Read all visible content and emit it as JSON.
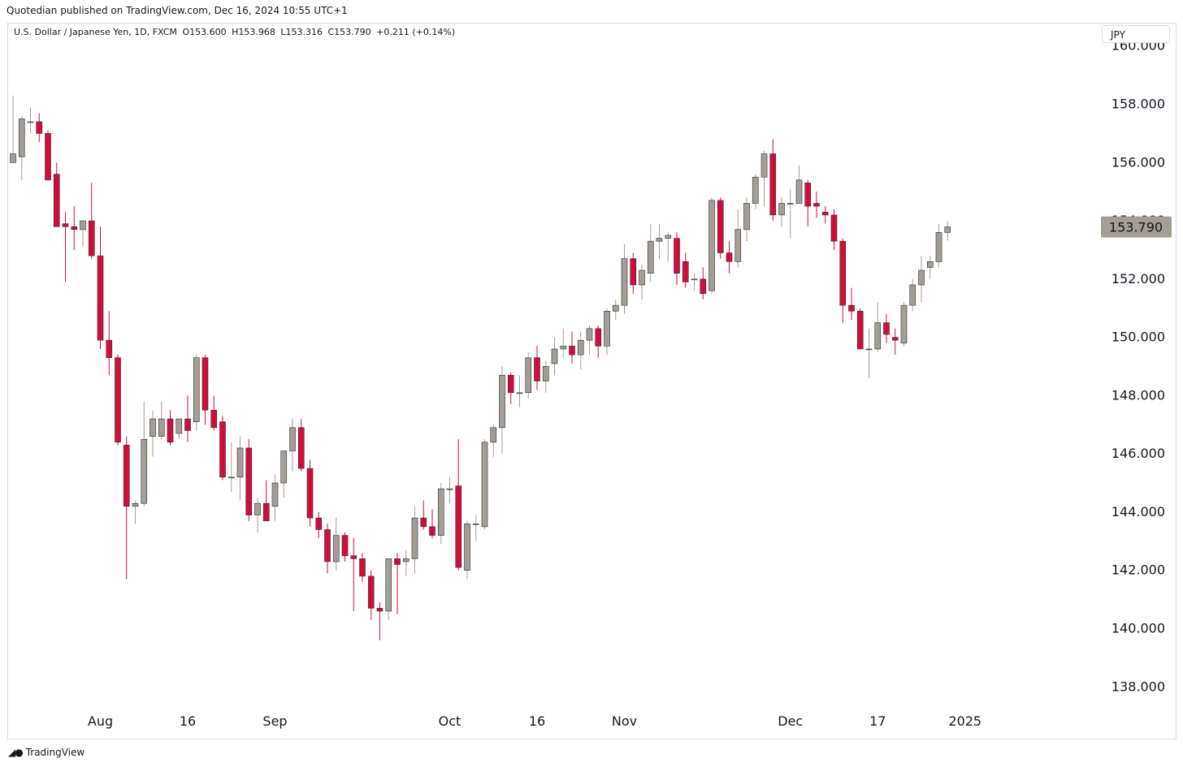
{
  "header": {
    "published": "Quotedian published on TradingView.com, Dec 16, 2024 10:55 UTC+1"
  },
  "legend": {
    "symbol": "U.S. Dollar / Japanese Yen, 1D, FXCM",
    "open": "O153.600",
    "high": "H153.968",
    "low": "L153.316",
    "close": "C153.790",
    "change": "+0.211 (+0.14%)"
  },
  "currency_button": "JPY",
  "last_price_label": "153.790",
  "footer": {
    "brand": "TradingView",
    "logo_icon": "tradingview-logo-icon"
  },
  "colors": {
    "up": "#a59e94",
    "down": "#d20d3b",
    "last_price_bg": "#a59e94",
    "grid": "#ffffff"
  },
  "chart_data": {
    "type": "candlestick",
    "symbol": "USDJPY",
    "interval": "1D",
    "ylim": [
      137.2,
      160.8
    ],
    "y_ticks": [
      "138.000",
      "140.000",
      "142.000",
      "144.000",
      "146.000",
      "148.000",
      "150.000",
      "152.000",
      "154.000",
      "156.000",
      "158.000",
      "160.000"
    ],
    "x_ticks": [
      {
        "label": "Aug",
        "index": 10
      },
      {
        "label": "16",
        "index": 20
      },
      {
        "label": "Sep",
        "index": 30
      },
      {
        "label": "Oct",
        "index": 50
      },
      {
        "label": "16",
        "index": 60
      },
      {
        "label": "Nov",
        "index": 70
      },
      {
        "label": "Dec",
        "index": 89
      },
      {
        "label": "17",
        "index": 99
      },
      {
        "label": "2025",
        "index": 109
      }
    ],
    "candles": [
      {
        "o": 156.0,
        "h": 158.3,
        "l": 156.0,
        "c": 156.3
      },
      {
        "o": 156.2,
        "h": 157.6,
        "l": 155.4,
        "c": 157.5
      },
      {
        "o": 157.4,
        "h": 157.9,
        "l": 157.0,
        "c": 157.4
      },
      {
        "o": 157.4,
        "h": 157.7,
        "l": 156.7,
        "c": 157.0
      },
      {
        "o": 157.0,
        "h": 157.1,
        "l": 155.5,
        "c": 155.4
      },
      {
        "o": 155.6,
        "h": 156.0,
        "l": 153.8,
        "c": 153.8
      },
      {
        "o": 153.9,
        "h": 154.3,
        "l": 151.9,
        "c": 153.8
      },
      {
        "o": 153.8,
        "h": 154.5,
        "l": 153.0,
        "c": 153.7
      },
      {
        "o": 153.7,
        "h": 154.0,
        "l": 153.1,
        "c": 154.0
      },
      {
        "o": 154.0,
        "h": 155.3,
        "l": 152.7,
        "c": 152.8
      },
      {
        "o": 152.8,
        "h": 153.8,
        "l": 149.6,
        "c": 149.9
      },
      {
        "o": 149.9,
        "h": 150.9,
        "l": 148.7,
        "c": 149.3
      },
      {
        "o": 149.3,
        "h": 149.4,
        "l": 146.3,
        "c": 146.4
      },
      {
        "o": 146.3,
        "h": 146.6,
        "l": 141.7,
        "c": 144.2
      },
      {
        "o": 144.2,
        "h": 144.4,
        "l": 143.6,
        "c": 144.3
      },
      {
        "o": 144.3,
        "h": 147.8,
        "l": 144.2,
        "c": 146.5
      },
      {
        "o": 146.6,
        "h": 147.5,
        "l": 145.9,
        "c": 147.2
      },
      {
        "o": 146.6,
        "h": 147.8,
        "l": 146.5,
        "c": 147.2
      },
      {
        "o": 147.2,
        "h": 147.5,
        "l": 146.3,
        "c": 146.4
      },
      {
        "o": 146.7,
        "h": 147.1,
        "l": 146.5,
        "c": 147.2
      },
      {
        "o": 147.2,
        "h": 148.0,
        "l": 146.4,
        "c": 146.8
      },
      {
        "o": 147.1,
        "h": 149.4,
        "l": 146.8,
        "c": 149.3
      },
      {
        "o": 149.3,
        "h": 149.4,
        "l": 147.0,
        "c": 147.5
      },
      {
        "o": 147.5,
        "h": 148.0,
        "l": 146.8,
        "c": 146.9
      },
      {
        "o": 147.1,
        "h": 147.3,
        "l": 145.1,
        "c": 145.2
      },
      {
        "o": 145.2,
        "h": 146.4,
        "l": 144.7,
        "c": 145.2
      },
      {
        "o": 145.2,
        "h": 146.6,
        "l": 144.4,
        "c": 146.2
      },
      {
        "o": 146.2,
        "h": 146.5,
        "l": 143.7,
        "c": 143.9
      },
      {
        "o": 143.9,
        "h": 144.5,
        "l": 143.3,
        "c": 144.3
      },
      {
        "o": 144.3,
        "h": 145.1,
        "l": 143.7,
        "c": 143.7
      },
      {
        "o": 144.2,
        "h": 145.3,
        "l": 143.7,
        "c": 145.0
      },
      {
        "o": 145.0,
        "h": 146.1,
        "l": 144.5,
        "c": 146.1
      },
      {
        "o": 146.1,
        "h": 147.2,
        "l": 145.4,
        "c": 146.9
      },
      {
        "o": 146.9,
        "h": 147.2,
        "l": 145.4,
        "c": 145.5
      },
      {
        "o": 145.5,
        "h": 145.8,
        "l": 143.5,
        "c": 143.8
      },
      {
        "o": 143.8,
        "h": 144.0,
        "l": 143.1,
        "c": 143.4
      },
      {
        "o": 143.4,
        "h": 143.6,
        "l": 141.9,
        "c": 142.3
      },
      {
        "o": 142.3,
        "h": 143.8,
        "l": 142.0,
        "c": 143.2
      },
      {
        "o": 143.2,
        "h": 143.3,
        "l": 142.3,
        "c": 142.5
      },
      {
        "o": 142.5,
        "h": 143.1,
        "l": 140.6,
        "c": 142.4
      },
      {
        "o": 142.4,
        "h": 142.6,
        "l": 141.6,
        "c": 141.8
      },
      {
        "o": 141.8,
        "h": 142.0,
        "l": 140.3,
        "c": 140.7
      },
      {
        "o": 140.7,
        "h": 140.9,
        "l": 139.6,
        "c": 140.6
      },
      {
        "o": 140.6,
        "h": 142.4,
        "l": 140.3,
        "c": 142.4
      },
      {
        "o": 142.4,
        "h": 142.6,
        "l": 140.5,
        "c": 142.2
      },
      {
        "o": 142.3,
        "h": 142.7,
        "l": 141.8,
        "c": 142.4
      },
      {
        "o": 142.4,
        "h": 144.2,
        "l": 141.9,
        "c": 143.8
      },
      {
        "o": 143.8,
        "h": 144.4,
        "l": 143.4,
        "c": 143.5
      },
      {
        "o": 143.5,
        "h": 144.1,
        "l": 143.1,
        "c": 143.2
      },
      {
        "o": 143.2,
        "h": 145.0,
        "l": 142.9,
        "c": 144.8
      },
      {
        "o": 144.8,
        "h": 145.2,
        "l": 144.3,
        "c": 144.8
      },
      {
        "o": 144.9,
        "h": 146.5,
        "l": 142.0,
        "c": 142.1
      },
      {
        "o": 142.0,
        "h": 143.7,
        "l": 141.7,
        "c": 143.6
      },
      {
        "o": 143.6,
        "h": 143.9,
        "l": 143.0,
        "c": 143.6
      },
      {
        "o": 143.5,
        "h": 146.5,
        "l": 143.4,
        "c": 146.4
      },
      {
        "o": 146.4,
        "h": 147.0,
        "l": 145.9,
        "c": 146.9
      },
      {
        "o": 146.9,
        "h": 149.0,
        "l": 146.0,
        "c": 148.7
      },
      {
        "o": 148.7,
        "h": 148.8,
        "l": 147.7,
        "c": 148.1
      },
      {
        "o": 148.1,
        "h": 148.7,
        "l": 147.6,
        "c": 148.1
      },
      {
        "o": 148.1,
        "h": 149.5,
        "l": 147.9,
        "c": 149.3
      },
      {
        "o": 149.3,
        "h": 149.7,
        "l": 148.2,
        "c": 148.5
      },
      {
        "o": 148.5,
        "h": 149.2,
        "l": 148.1,
        "c": 149.0
      },
      {
        "o": 149.1,
        "h": 150.0,
        "l": 148.7,
        "c": 149.6
      },
      {
        "o": 149.6,
        "h": 150.3,
        "l": 149.3,
        "c": 149.7
      },
      {
        "o": 149.7,
        "h": 150.2,
        "l": 149.1,
        "c": 149.4
      },
      {
        "o": 149.4,
        "h": 150.2,
        "l": 148.9,
        "c": 149.9
      },
      {
        "o": 149.9,
        "h": 150.4,
        "l": 149.4,
        "c": 150.3
      },
      {
        "o": 150.3,
        "h": 150.4,
        "l": 149.3,
        "c": 149.7
      },
      {
        "o": 149.7,
        "h": 151.0,
        "l": 149.4,
        "c": 150.9
      },
      {
        "o": 150.9,
        "h": 151.3,
        "l": 150.6,
        "c": 151.1
      },
      {
        "o": 151.1,
        "h": 153.2,
        "l": 150.8,
        "c": 152.7
      },
      {
        "o": 152.7,
        "h": 152.9,
        "l": 151.5,
        "c": 151.8
      },
      {
        "o": 151.8,
        "h": 152.5,
        "l": 151.3,
        "c": 152.3
      },
      {
        "o": 152.2,
        "h": 153.9,
        "l": 151.9,
        "c": 153.3
      },
      {
        "o": 153.3,
        "h": 153.9,
        "l": 152.7,
        "c": 153.4
      },
      {
        "o": 153.4,
        "h": 153.6,
        "l": 152.6,
        "c": 153.5
      },
      {
        "o": 153.4,
        "h": 153.6,
        "l": 151.8,
        "c": 152.2
      },
      {
        "o": 152.6,
        "h": 152.9,
        "l": 151.7,
        "c": 151.9
      },
      {
        "o": 152.0,
        "h": 152.2,
        "l": 151.6,
        "c": 152.0
      },
      {
        "o": 152.0,
        "h": 152.4,
        "l": 151.3,
        "c": 151.5
      },
      {
        "o": 151.6,
        "h": 154.8,
        "l": 151.5,
        "c": 154.7
      },
      {
        "o": 154.7,
        "h": 154.8,
        "l": 152.7,
        "c": 152.9
      },
      {
        "o": 152.9,
        "h": 153.3,
        "l": 152.2,
        "c": 152.6
      },
      {
        "o": 152.6,
        "h": 154.4,
        "l": 152.4,
        "c": 153.7
      },
      {
        "o": 153.7,
        "h": 154.8,
        "l": 153.3,
        "c": 154.6
      },
      {
        "o": 154.6,
        "h": 155.6,
        "l": 154.4,
        "c": 155.5
      },
      {
        "o": 155.5,
        "h": 156.4,
        "l": 154.5,
        "c": 156.3
      },
      {
        "o": 156.3,
        "h": 156.8,
        "l": 154.0,
        "c": 154.2
      },
      {
        "o": 154.2,
        "h": 154.8,
        "l": 153.8,
        "c": 154.6
      },
      {
        "o": 154.6,
        "h": 155.1,
        "l": 153.4,
        "c": 154.6
      },
      {
        "o": 154.6,
        "h": 155.9,
        "l": 154.6,
        "c": 155.4
      },
      {
        "o": 155.3,
        "h": 155.4,
        "l": 153.8,
        "c": 154.5
      },
      {
        "o": 154.6,
        "h": 155.0,
        "l": 154.1,
        "c": 154.5
      },
      {
        "o": 154.3,
        "h": 154.5,
        "l": 153.9,
        "c": 154.2
      },
      {
        "o": 154.2,
        "h": 154.4,
        "l": 153.0,
        "c": 153.3
      },
      {
        "o": 153.3,
        "h": 153.4,
        "l": 150.5,
        "c": 151.1
      },
      {
        "o": 151.1,
        "h": 151.7,
        "l": 150.6,
        "c": 150.9
      },
      {
        "o": 150.9,
        "h": 151.0,
        "l": 149.7,
        "c": 149.6
      },
      {
        "o": 149.6,
        "h": 150.3,
        "l": 148.6,
        "c": 149.6
      },
      {
        "o": 149.6,
        "h": 151.2,
        "l": 149.5,
        "c": 150.5
      },
      {
        "o": 150.5,
        "h": 150.8,
        "l": 149.8,
        "c": 150.1
      },
      {
        "o": 150.0,
        "h": 150.3,
        "l": 149.4,
        "c": 149.9
      },
      {
        "o": 149.8,
        "h": 151.2,
        "l": 149.7,
        "c": 151.1
      },
      {
        "o": 151.1,
        "h": 152.0,
        "l": 150.9,
        "c": 151.8
      },
      {
        "o": 151.8,
        "h": 152.8,
        "l": 151.2,
        "c": 152.3
      },
      {
        "o": 152.4,
        "h": 152.8,
        "l": 152.0,
        "c": 152.6
      },
      {
        "o": 152.6,
        "h": 153.9,
        "l": 152.4,
        "c": 153.6
      },
      {
        "o": 153.6,
        "h": 153.968,
        "l": 153.316,
        "c": 153.79
      }
    ]
  }
}
